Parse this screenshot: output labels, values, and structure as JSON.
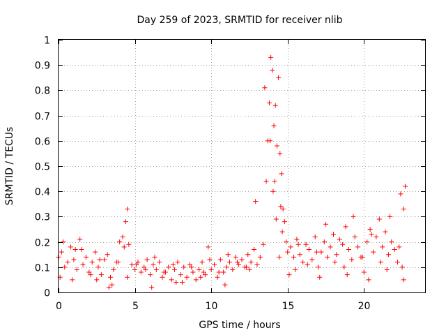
{
  "chart_data": {
    "type": "scatter",
    "title": "Day 259 of 2023, SRMTID for receiver nlib",
    "xlabel": "GPS time / hours",
    "ylabel": "SRMTID / TECUs",
    "xlim": [
      0,
      24
    ],
    "ylim": [
      0,
      1
    ],
    "xticks": [
      0,
      5,
      10,
      15,
      20
    ],
    "yticks": [
      0,
      0.1,
      0.2,
      0.3,
      0.4,
      0.5,
      0.6,
      0.7,
      0.8,
      0.9,
      1
    ],
    "xtick_labels": [
      "0",
      "5",
      "10",
      "15",
      "20"
    ],
    "ytick_labels": [
      "0",
      "0.1",
      "0.2",
      "0.3",
      "0.4",
      "0.5",
      "0.6",
      "0.7",
      "0.8",
      "0.9",
      "1"
    ],
    "grid": true,
    "marker": "+",
    "color": "#ff0000",
    "series": [
      {
        "name": "SRMTID",
        "x": [
          0.0,
          0.2,
          0.4,
          0.6,
          0.8,
          1.0,
          1.2,
          1.4,
          1.6,
          1.8,
          2.0,
          2.2,
          2.4,
          2.6,
          2.8,
          3.0,
          3.2,
          3.4,
          3.6,
          3.8,
          4.0,
          4.2,
          4.4,
          4.5,
          4.6,
          4.8,
          5.0,
          5.2,
          5.4,
          5.6,
          5.8,
          6.0,
          6.2,
          6.4,
          6.6,
          6.8,
          7.0,
          7.2,
          7.4,
          7.6,
          7.8,
          8.0,
          8.2,
          8.4,
          8.6,
          8.8,
          9.0,
          9.2,
          9.4,
          9.6,
          9.8,
          10.0,
          10.2,
          10.4,
          10.6,
          10.8,
          11.0,
          11.2,
          11.4,
          11.6,
          11.8,
          12.0,
          12.2,
          12.4,
          12.6,
          12.8,
          13.0,
          13.2,
          13.4,
          13.6,
          13.7,
          13.8,
          13.9,
          14.0,
          14.1,
          14.2,
          14.3,
          14.4,
          14.5,
          14.6,
          14.7,
          14.8,
          14.9,
          15.0,
          15.2,
          15.4,
          15.6,
          15.8,
          16.0,
          16.2,
          16.4,
          16.6,
          16.8,
          17.0,
          17.2,
          17.4,
          17.6,
          17.8,
          18.0,
          18.2,
          18.4,
          18.6,
          18.8,
          19.0,
          19.2,
          19.4,
          19.6,
          19.8,
          20.0,
          20.2,
          20.4,
          20.6,
          20.8,
          21.0,
          21.2,
          21.4,
          21.6,
          21.8,
          22.0,
          22.2,
          22.4,
          22.6,
          22.7,
          0.3,
          0.9,
          1.5,
          2.1,
          2.7,
          3.3,
          3.9,
          4.5,
          5.1,
          5.7,
          6.3,
          6.9,
          7.5,
          8.1,
          8.7,
          9.3,
          9.9,
          10.5,
          11.1,
          11.7,
          12.3,
          12.9,
          13.5,
          14.05,
          14.25,
          14.45,
          14.65,
          15.1,
          15.7,
          16.3,
          16.9,
          17.5,
          18.1,
          18.7,
          19.3,
          19.9,
          20.5,
          21.1,
          21.7,
          22.3,
          22.6,
          0.1,
          1.1,
          2.5,
          3.5,
          4.3,
          6.1,
          7.7,
          9.5,
          10.9,
          12.5,
          13.85,
          14.15,
          14.55,
          15.5,
          17.1,
          18.9,
          20.3,
          21.5,
          22.5
        ],
        "y": [
          0.14,
          0.16,
          0.1,
          0.12,
          0.18,
          0.13,
          0.09,
          0.21,
          0.11,
          0.14,
          0.08,
          0.12,
          0.16,
          0.1,
          0.07,
          0.13,
          0.15,
          0.06,
          0.09,
          0.12,
          0.2,
          0.22,
          0.28,
          0.33,
          0.19,
          0.11,
          0.09,
          0.12,
          0.08,
          0.1,
          0.13,
          0.07,
          0.11,
          0.09,
          0.12,
          0.06,
          0.08,
          0.1,
          0.05,
          0.09,
          0.12,
          0.07,
          0.1,
          0.06,
          0.11,
          0.08,
          0.05,
          0.09,
          0.12,
          0.07,
          0.18,
          0.09,
          0.11,
          0.06,
          0.13,
          0.08,
          0.1,
          0.12,
          0.09,
          0.14,
          0.11,
          0.13,
          0.1,
          0.15,
          0.12,
          0.17,
          0.11,
          0.14,
          0.19,
          0.44,
          0.6,
          0.75,
          0.93,
          0.88,
          0.66,
          0.74,
          0.58,
          0.85,
          0.55,
          0.47,
          0.33,
          0.28,
          0.2,
          0.16,
          0.18,
          0.14,
          0.21,
          0.15,
          0.12,
          0.19,
          0.17,
          0.13,
          0.22,
          0.1,
          0.16,
          0.2,
          0.14,
          0.18,
          0.23,
          0.15,
          0.21,
          0.19,
          0.26,
          0.17,
          0.13,
          0.22,
          0.18,
          0.14,
          0.08,
          0.2,
          0.25,
          0.16,
          0.22,
          0.29,
          0.18,
          0.24,
          0.15,
          0.2,
          0.17,
          0.12,
          0.39,
          0.33,
          0.42,
          0.2,
          0.05,
          0.17,
          0.07,
          0.13,
          0.02,
          0.12,
          0.06,
          0.11,
          0.09,
          0.14,
          0.08,
          0.11,
          0.04,
          0.1,
          0.06,
          0.13,
          0.08,
          0.15,
          0.12,
          0.1,
          0.36,
          0.81,
          0.4,
          0.29,
          0.14,
          0.24,
          0.07,
          0.19,
          0.11,
          0.16,
          0.27,
          0.12,
          0.1,
          0.3,
          0.14,
          0.23,
          0.12,
          0.3,
          0.18,
          0.05,
          0.06,
          0.17,
          0.05,
          0.03,
          0.18,
          0.02,
          0.04,
          0.08,
          0.03,
          0.09,
          0.6,
          0.44,
          0.34,
          0.09,
          0.06,
          0.07,
          0.05,
          0.09,
          0.1
        ]
      }
    ]
  }
}
